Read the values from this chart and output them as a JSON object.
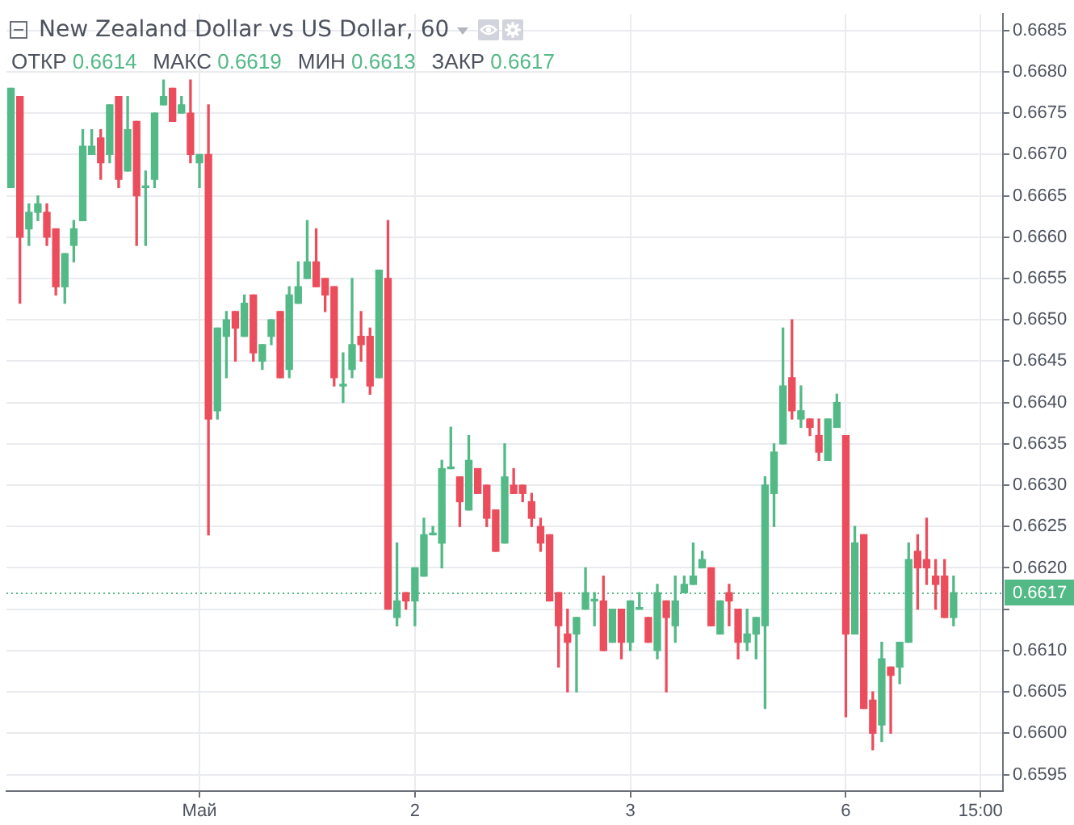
{
  "chart_data": {
    "type": "candlestick",
    "title": "New Zealand Dollar vs US Dollar, 60",
    "annotations": [
      "ОТКР 0.6614",
      "МАКС 0.6619",
      "МИН 0.6613",
      "ЗАКР 0.6617"
    ],
    "categories": [
      null,
      null,
      null,
      null,
      null,
      null,
      null,
      null,
      null,
      null,
      null,
      null,
      null,
      null,
      null,
      null,
      null,
      null,
      null,
      null,
      null,
      "Май",
      null,
      null,
      null,
      null,
      null,
      null,
      null,
      null,
      null,
      null,
      null,
      null,
      null,
      null,
      null,
      null,
      null,
      null,
      null,
      null,
      null,
      null,
      null,
      "2",
      null,
      null,
      null,
      null,
      null,
      null,
      null,
      null,
      null,
      null,
      null,
      null,
      null,
      null,
      null,
      null,
      null,
      null,
      null,
      null,
      null,
      null,
      null,
      "3",
      null,
      null,
      null,
      null,
      null,
      null,
      null,
      null,
      null,
      null,
      null,
      null,
      null,
      null,
      null,
      null,
      null,
      null,
      null,
      null,
      null,
      null,
      null,
      "6",
      null,
      null,
      null,
      null,
      null,
      null,
      null,
      null,
      null,
      null,
      null,
      null,
      null,
      null,
      "15:00",
      null,
      null
    ],
    "ohlc": [
      [
        0.6666,
        0.6678,
        0.6666,
        0.6678
      ],
      [
        0.6677,
        0.6677,
        0.6652,
        0.666
      ],
      [
        0.6661,
        0.6664,
        0.6659,
        0.6663
      ],
      [
        0.6663,
        0.6665,
        0.6662,
        0.6664
      ],
      [
        0.6663,
        0.6664,
        0.6659,
        0.666
      ],
      [
        0.6661,
        0.6661,
        0.6653,
        0.6654
      ],
      [
        0.6654,
        0.6658,
        0.6652,
        0.6658
      ],
      [
        0.6659,
        0.6662,
        0.6657,
        0.6661
      ],
      [
        0.6662,
        0.6673,
        0.6662,
        0.6671
      ],
      [
        0.667,
        0.6673,
        0.667,
        0.6671
      ],
      [
        0.6672,
        0.6673,
        0.6667,
        0.6669
      ],
      [
        0.667,
        0.6676,
        0.6669,
        0.6676
      ],
      [
        0.6677,
        0.6677,
        0.6666,
        0.6667
      ],
      [
        0.6668,
        0.6677,
        0.6668,
        0.6673
      ],
      [
        0.6674,
        0.6674,
        0.6659,
        0.6665
      ],
      [
        0.6666,
        0.6668,
        0.6659,
        0.6666
      ],
      [
        0.6667,
        0.6675,
        0.6666,
        0.6675
      ],
      [
        0.6676,
        0.6679,
        0.6676,
        0.6677
      ],
      [
        0.6678,
        0.6678,
        0.6674,
        0.6674
      ],
      [
        0.6675,
        0.6677,
        0.6675,
        0.6676
      ],
      [
        0.6675,
        0.6679,
        0.6669,
        0.667
      ],
      [
        0.6669,
        0.667,
        0.6666,
        0.667
      ],
      [
        0.667,
        0.6676,
        0.6624,
        0.6638
      ],
      [
        0.6639,
        0.6649,
        0.6638,
        0.6649
      ],
      [
        0.6648,
        0.6651,
        0.6643,
        0.665
      ],
      [
        0.6651,
        0.6651,
        0.6645,
        0.6649
      ],
      [
        0.6648,
        0.6653,
        0.6648,
        0.6652
      ],
      [
        0.6653,
        0.6653,
        0.6645,
        0.6646
      ],
      [
        0.6645,
        0.6647,
        0.6644,
        0.6647
      ],
      [
        0.6648,
        0.665,
        0.6647,
        0.665
      ],
      [
        0.6651,
        0.6651,
        0.6643,
        0.6643
      ],
      [
        0.6644,
        0.6654,
        0.6643,
        0.6653
      ],
      [
        0.6652,
        0.6657,
        0.6652,
        0.6654
      ],
      [
        0.6655,
        0.6662,
        0.6655,
        0.6657
      ],
      [
        0.6657,
        0.6661,
        0.6654,
        0.6654
      ],
      [
        0.6655,
        0.6655,
        0.6651,
        0.6653
      ],
      [
        0.6654,
        0.6654,
        0.6642,
        0.6643
      ],
      [
        0.6642,
        0.6646,
        0.664,
        0.6642
      ],
      [
        0.6644,
        0.6655,
        0.6643,
        0.6647
      ],
      [
        0.6648,
        0.6651,
        0.6645,
        0.6647
      ],
      [
        0.6648,
        0.6649,
        0.6641,
        0.6642
      ],
      [
        0.6643,
        0.6656,
        0.6643,
        0.6656
      ],
      [
        0.6655,
        0.6662,
        0.6615,
        0.6615
      ],
      [
        0.6614,
        0.6623,
        0.6613,
        0.6616
      ],
      [
        0.6617,
        0.6617,
        0.6615,
        0.6616
      ],
      [
        0.6616,
        0.662,
        0.6613,
        0.662
      ],
      [
        0.6619,
        0.6626,
        0.6619,
        0.6624
      ],
      [
        0.6624,
        0.6625,
        0.6624,
        0.6624
      ],
      [
        0.6623,
        0.6633,
        0.662,
        0.6632
      ],
      [
        0.6632,
        0.6637,
        0.6632,
        0.6632
      ],
      [
        0.6631,
        0.6631,
        0.6625,
        0.6628
      ],
      [
        0.6627,
        0.6636,
        0.6627,
        0.6633
      ],
      [
        0.6632,
        0.6632,
        0.6629,
        0.6629
      ],
      [
        0.663,
        0.663,
        0.6625,
        0.6626
      ],
      [
        0.6627,
        0.6627,
        0.6622,
        0.6622
      ],
      [
        0.6623,
        0.6635,
        0.6623,
        0.6631
      ],
      [
        0.663,
        0.6632,
        0.6629,
        0.6629
      ],
      [
        0.663,
        0.663,
        0.6628,
        0.6629
      ],
      [
        0.6628,
        0.6629,
        0.6625,
        0.6626
      ],
      [
        0.6625,
        0.6626,
        0.6622,
        0.6623
      ],
      [
        0.6624,
        0.6624,
        0.6616,
        0.6616
      ],
      [
        0.6617,
        0.6617,
        0.6608,
        0.6613
      ],
      [
        0.6612,
        0.6615,
        0.6605,
        0.6611
      ],
      [
        0.6612,
        0.6614,
        0.6605,
        0.6614
      ],
      [
        0.6615,
        0.662,
        0.6615,
        0.6617
      ],
      [
        0.6616,
        0.6617,
        0.6613,
        0.6616
      ],
      [
        0.6616,
        0.6619,
        0.661,
        0.661
      ],
      [
        0.6611,
        0.6615,
        0.6611,
        0.6615
      ],
      [
        0.6615,
        0.6615,
        0.6609,
        0.6611
      ],
      [
        0.6611,
        0.6616,
        0.661,
        0.6616
      ],
      [
        0.6615,
        0.6617,
        0.6615,
        0.6615
      ],
      [
        0.6614,
        0.6614,
        0.6611,
        0.6611
      ],
      [
        0.661,
        0.6618,
        0.6609,
        0.6617
      ],
      [
        0.6616,
        0.6616,
        0.6605,
        0.6614
      ],
      [
        0.6613,
        0.6619,
        0.6611,
        0.6616
      ],
      [
        0.6617,
        0.6619,
        0.6617,
        0.6618
      ],
      [
        0.6618,
        0.6623,
        0.6618,
        0.6619
      ],
      [
        0.662,
        0.6622,
        0.662,
        0.6621
      ],
      [
        0.662,
        0.662,
        0.6613,
        0.6613
      ],
      [
        0.6612,
        0.6616,
        0.6612,
        0.6616
      ],
      [
        0.6617,
        0.6618,
        0.6613,
        0.6616
      ],
      [
        0.6615,
        0.6615,
        0.6609,
        0.6611
      ],
      [
        0.6611,
        0.6615,
        0.661,
        0.6612
      ],
      [
        0.6612,
        0.6614,
        0.6609,
        0.6614
      ],
      [
        0.6613,
        0.6631,
        0.6603,
        0.663
      ],
      [
        0.6629,
        0.6635,
        0.6625,
        0.6634
      ],
      [
        0.6635,
        0.6649,
        0.6635,
        0.6642
      ],
      [
        0.6643,
        0.665,
        0.6638,
        0.6639
      ],
      [
        0.6638,
        0.6642,
        0.6637,
        0.6639
      ],
      [
        0.6638,
        0.6638,
        0.6636,
        0.6637
      ],
      [
        0.6636,
        0.6638,
        0.6633,
        0.6634
      ],
      [
        0.6633,
        0.6638,
        0.6633,
        0.6638
      ],
      [
        0.6637,
        0.6641,
        0.6637,
        0.664
      ],
      [
        0.6636,
        0.6636,
        0.6602,
        0.6612
      ],
      [
        0.6612,
        0.6625,
        0.6612,
        0.6623
      ],
      [
        0.6624,
        0.6624,
        0.6603,
        0.6603
      ],
      [
        0.6604,
        0.6605,
        0.6598,
        0.66
      ],
      [
        0.6601,
        0.6611,
        0.6599,
        0.6609
      ],
      [
        0.6608,
        0.6608,
        0.66,
        0.6607
      ],
      [
        0.6608,
        0.6611,
        0.6606,
        0.6611
      ],
      [
        0.6611,
        0.6623,
        0.6611,
        0.6621
      ],
      [
        0.6622,
        0.6624,
        0.6615,
        0.662
      ],
      [
        0.6621,
        0.6626,
        0.6618,
        0.662
      ],
      [
        0.6619,
        0.6621,
        0.6615,
        0.6618
      ],
      [
        0.6619,
        0.6621,
        0.6614,
        0.6614
      ],
      [
        0.6614,
        0.6619,
        0.6613,
        0.6617
      ],
      null,
      null,
      null,
      null,
      null
    ],
    "colors": [
      "#53b987",
      "#eb4d5c",
      "#53b987",
      "#53b987",
      "#eb4d5c",
      "#eb4d5c",
      "#53b987",
      "#53b987",
      "#53b987",
      "#53b987",
      "#eb4d5c",
      "#53b987",
      "#eb4d5c",
      "#53b987",
      "#eb4d5c",
      "#53b987",
      "#53b987",
      "#53b987",
      "#eb4d5c",
      "#53b987",
      "#eb4d5c",
      "#53b987",
      "#eb4d5c",
      "#53b987",
      "#53b987",
      "#eb4d5c",
      "#53b987",
      "#eb4d5c",
      "#53b987",
      "#53b987",
      "#eb4d5c",
      "#53b987",
      "#53b987",
      "#53b987",
      "#eb4d5c",
      "#eb4d5c",
      "#eb4d5c",
      "#53b987",
      "#53b987",
      "#eb4d5c",
      "#eb4d5c",
      "#53b987",
      "#eb4d5c",
      "#53b987",
      "#eb4d5c",
      "#53b987",
      "#53b987",
      "#53b987",
      "#53b987",
      "#53b987",
      "#eb4d5c",
      "#53b987",
      "#eb4d5c",
      "#eb4d5c",
      "#eb4d5c",
      "#53b987",
      "#eb4d5c",
      "#eb4d5c",
      "#eb4d5c",
      "#eb4d5c",
      "#eb4d5c",
      "#eb4d5c",
      "#eb4d5c",
      "#53b987",
      "#53b987",
      "#53b987",
      "#eb4d5c",
      "#53b987",
      "#eb4d5c",
      "#53b987",
      "#53b987",
      "#eb4d5c",
      "#53b987",
      "#eb4d5c",
      "#53b987",
      "#53b987",
      "#53b987",
      "#53b987",
      "#eb4d5c",
      "#53b987",
      "#eb4d5c",
      "#eb4d5c",
      "#53b987",
      "#53b987",
      "#53b987",
      "#53b987",
      "#53b987",
      "#eb4d5c",
      "#53b987",
      "#eb4d5c",
      "#eb4d5c",
      "#53b987",
      "#53b987",
      "#eb4d5c",
      "#53b987",
      "#eb4d5c",
      "#eb4d5c",
      "#53b987",
      "#eb4d5c",
      "#53b987",
      "#53b987",
      "#eb4d5c",
      "#eb4d5c",
      "#eb4d5c",
      "#eb4d5c",
      "#53b987",
      null,
      null,
      null,
      null,
      null
    ],
    "ylim": [
      0.6593,
      0.6687
    ],
    "yticks": [
      0.6595,
      {
        "value": 0.66,
        "label": "0.6600"
      },
      0.6605,
      {
        "value": 0.661,
        "label": "0.6610"
      },
      {
        "value": 0.6615,
        "label": null
      },
      {
        "value": 0.662,
        "label": "0.6620"
      },
      0.6625,
      {
        "value": 0.663,
        "label": "0.6630"
      },
      0.6635,
      {
        "value": 0.664,
        "label": "0.6640"
      },
      0.6645,
      {
        "value": 0.665,
        "label": "0.6650"
      },
      0.6655,
      {
        "value": 0.666,
        "label": "0.6660"
      },
      0.6665,
      {
        "value": 0.667,
        "label": "0.6670"
      },
      0.6675,
      {
        "value": 0.668,
        "label": "0.6680"
      },
      0.6685
    ],
    "ref_lines": [
      {
        "axis": "y",
        "value": 0.6617,
        "label": "0.6617",
        "color": "#53b987",
        "line_style": "dotted"
      }
    ],
    "grid": true
  }
}
